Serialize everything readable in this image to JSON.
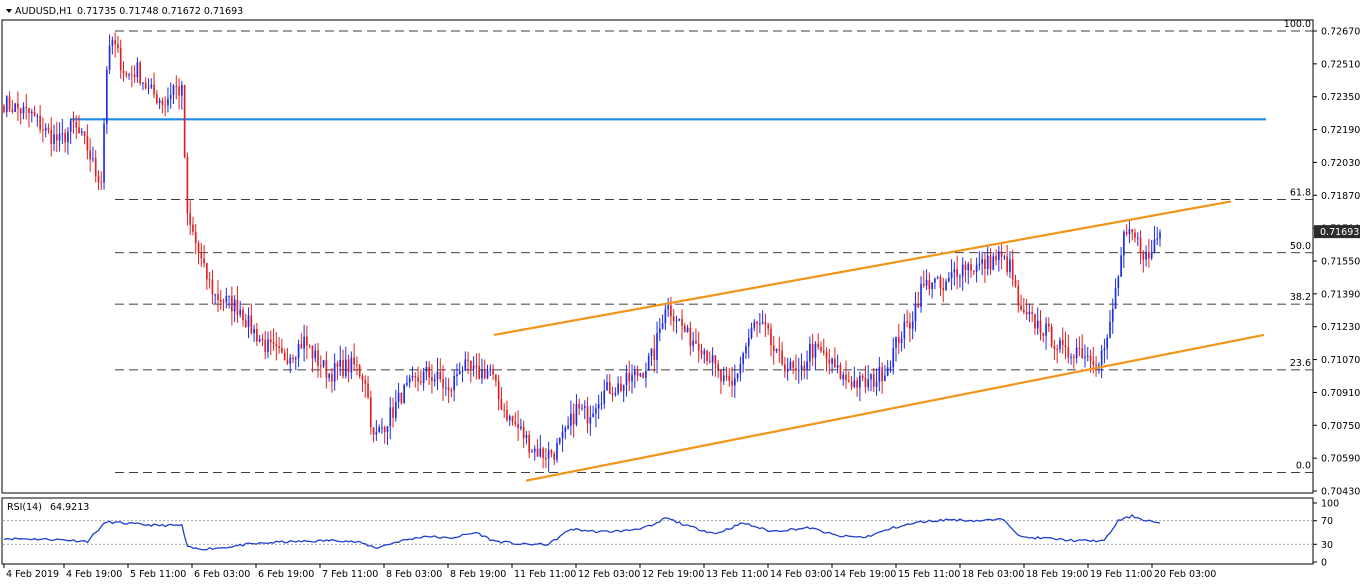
{
  "header": {
    "symbol_tf": "AUDUSD,H1",
    "ohlc": "0.71735 0.71748 0.71672 0.71693"
  },
  "rsi_header": {
    "label": "RSI(14)",
    "value": "64.9213"
  },
  "colors": {
    "bull": "#1e2be8",
    "bear": "#e02020",
    "resistance": "#1e88e5",
    "channel": "#f39419",
    "rsi": "#1f3fcf",
    "price_tag_bg": "#2b2b2b"
  },
  "chart_data": [
    {
      "type": "candlestick",
      "title": "AUDUSD,H1",
      "y_ticks": [
        "0.72670",
        "0.72510",
        "0.72350",
        "0.72190",
        "0.72030",
        "0.71870",
        "0.71710",
        "0.71550",
        "0.71390",
        "0.71230",
        "0.71070",
        "0.70910",
        "0.70750",
        "0.70590",
        "0.70430"
      ],
      "ylim": [
        0.7043,
        0.7267
      ],
      "x_ticks": [
        "4 Feb 2019",
        "4 Feb 19:00",
        "5 Feb 11:00",
        "6 Feb 03:00",
        "6 Feb 19:00",
        "7 Feb 11:00",
        "8 Feb 03:00",
        "8 Feb 19:00",
        "11 Feb 11:00",
        "12 Feb 03:00",
        "12 Feb 19:00",
        "13 Feb 11:00",
        "14 Feb 03:00",
        "14 Feb 19:00",
        "15 Feb 11:00",
        "18 Feb 03:00",
        "18 Feb 19:00",
        "19 Feb 11:00",
        "20 Feb 03:00"
      ],
      "current_price": "0.71693",
      "horizontal_resistance": 0.7224,
      "fibonacci_levels": [
        {
          "label": "100.0",
          "price": 0.7267
        },
        {
          "label": "61.8",
          "price": 0.7185
        },
        {
          "label": "50.0",
          "price": 0.7159
        },
        {
          "label": "38.2",
          "price": 0.7134
        },
        {
          "label": "23.6",
          "price": 0.7102
        },
        {
          "label": "0.0",
          "price": 0.7052
        }
      ],
      "channel_upper": [
        {
          "x": 0.0,
          "y": 0.7119
        },
        {
          "x": 1.0,
          "y": 0.7184
        }
      ],
      "channel_lower": [
        {
          "x": 0.0,
          "y": 0.7048
        },
        {
          "x": 1.0,
          "y": 0.7119
        }
      ],
      "anchors": [
        [
          0,
          0.7232
        ],
        [
          10,
          0.7226
        ],
        [
          15,
          0.7218
        ],
        [
          20,
          0.7213
        ],
        [
          25,
          0.7221
        ],
        [
          30,
          0.721
        ],
        [
          33,
          0.7198
        ],
        [
          35,
          0.7195
        ],
        [
          37,
          0.725
        ],
        [
          39,
          0.7262
        ],
        [
          44,
          0.7245
        ],
        [
          48,
          0.7248
        ],
        [
          52,
          0.7238
        ],
        [
          58,
          0.7232
        ],
        [
          61,
          0.724
        ],
        [
          64,
          0.7237
        ],
        [
          66,
          0.7175
        ],
        [
          68,
          0.7168
        ],
        [
          72,
          0.715
        ],
        [
          76,
          0.7138
        ],
        [
          82,
          0.7134
        ],
        [
          85,
          0.7132
        ],
        [
          88,
          0.7124
        ],
        [
          94,
          0.7114
        ],
        [
          100,
          0.7108
        ],
        [
          104,
          0.7111
        ],
        [
          108,
          0.7116
        ],
        [
          112,
          0.7108
        ],
        [
          117,
          0.71
        ],
        [
          121,
          0.7103
        ],
        [
          126,
          0.7104
        ],
        [
          130,
          0.7098
        ],
        [
          133,
          0.7068
        ],
        [
          136,
          0.7074
        ],
        [
          140,
          0.7082
        ],
        [
          143,
          0.709
        ],
        [
          147,
          0.7095
        ],
        [
          152,
          0.71
        ],
        [
          157,
          0.7097
        ],
        [
          160,
          0.709
        ],
        [
          164,
          0.7104
        ],
        [
          170,
          0.71
        ],
        [
          175,
          0.7102
        ],
        [
          178,
          0.7088
        ],
        [
          182,
          0.7078
        ],
        [
          186,
          0.7072
        ],
        [
          190,
          0.7064
        ],
        [
          194,
          0.7061
        ],
        [
          198,
          0.7062
        ],
        [
          202,
          0.707
        ],
        [
          206,
          0.7083
        ],
        [
          210,
          0.708
        ],
        [
          214,
          0.7089
        ],
        [
          218,
          0.7093
        ],
        [
          222,
          0.7094
        ],
        [
          226,
          0.7098
        ],
        [
          230,
          0.7102
        ],
        [
          234,
          0.711
        ],
        [
          238,
          0.7134
        ],
        [
          242,
          0.7128
        ],
        [
          246,
          0.7118
        ],
        [
          250,
          0.7116
        ],
        [
          254,
          0.7108
        ],
        [
          258,
          0.7097
        ],
        [
          262,
          0.7093
        ],
        [
          266,
          0.711
        ],
        [
          270,
          0.7124
        ],
        [
          274,
          0.7121
        ],
        [
          278,
          0.7108
        ],
        [
          282,
          0.7104
        ],
        [
          286,
          0.7098
        ],
        [
          290,
          0.7112
        ],
        [
          294,
          0.711
        ],
        [
          298,
          0.7104
        ],
        [
          302,
          0.7098
        ],
        [
          306,
          0.7096
        ],
        [
          310,
          0.7095
        ],
        [
          314,
          0.7098
        ],
        [
          318,
          0.7104
        ],
        [
          322,
          0.7118
        ],
        [
          326,
          0.7125
        ],
        [
          330,
          0.7141
        ],
        [
          334,
          0.7146
        ],
        [
          338,
          0.714
        ],
        [
          342,
          0.715
        ],
        [
          346,
          0.7153
        ],
        [
          350,
          0.7152
        ],
        [
          354,
          0.7154
        ],
        [
          358,
          0.7157
        ],
        [
          362,
          0.7152
        ],
        [
          366,
          0.7128
        ],
        [
          370,
          0.7126
        ],
        [
          374,
          0.7122
        ],
        [
          378,
          0.7116
        ],
        [
          382,
          0.7109
        ],
        [
          386,
          0.7113
        ],
        [
          390,
          0.7109
        ],
        [
          394,
          0.7108
        ],
        [
          397,
          0.7115
        ],
        [
          400,
          0.714
        ],
        [
          403,
          0.7165
        ],
        [
          406,
          0.7167
        ],
        [
          409,
          0.7162
        ],
        [
          412,
          0.7155
        ],
        [
          414,
          0.7165
        ],
        [
          416,
          0.7169
        ]
      ]
    },
    {
      "type": "line",
      "title": "RSI(14)",
      "y_ticks": [
        "100",
        "70",
        "30",
        "0"
      ],
      "ylim": [
        0,
        100
      ],
      "levels": [
        70,
        30
      ],
      "anchors": [
        [
          0,
          40
        ],
        [
          20,
          38
        ],
        [
          30,
          35
        ],
        [
          35,
          60
        ],
        [
          37,
          68
        ],
        [
          45,
          65
        ],
        [
          55,
          62
        ],
        [
          64,
          62
        ],
        [
          66,
          25
        ],
        [
          70,
          22
        ],
        [
          78,
          24
        ],
        [
          88,
          30
        ],
        [
          100,
          34
        ],
        [
          110,
          35
        ],
        [
          120,
          37
        ],
        [
          128,
          33
        ],
        [
          134,
          24
        ],
        [
          142,
          35
        ],
        [
          152,
          44
        ],
        [
          160,
          40
        ],
        [
          170,
          50
        ],
        [
          176,
          36
        ],
        [
          186,
          30
        ],
        [
          196,
          30
        ],
        [
          204,
          56
        ],
        [
          214,
          51
        ],
        [
          224,
          53
        ],
        [
          234,
          62
        ],
        [
          238,
          75
        ],
        [
          246,
          61
        ],
        [
          256,
          48
        ],
        [
          266,
          66
        ],
        [
          276,
          52
        ],
        [
          290,
          58
        ],
        [
          300,
          44
        ],
        [
          310,
          42
        ],
        [
          320,
          58
        ],
        [
          330,
          68
        ],
        [
          340,
          72
        ],
        [
          350,
          70
        ],
        [
          360,
          72
        ],
        [
          366,
          42
        ],
        [
          376,
          40
        ],
        [
          386,
          36
        ],
        [
          396,
          36
        ],
        [
          401,
          70
        ],
        [
          406,
          78
        ],
        [
          410,
          72
        ],
        [
          414,
          68
        ],
        [
          416,
          65
        ]
      ]
    }
  ]
}
